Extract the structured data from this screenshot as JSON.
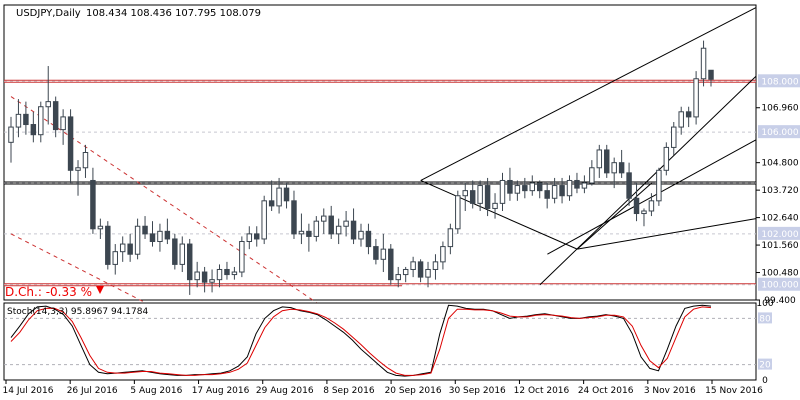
{
  "chart_data": {
    "type": "candlestick",
    "title": "USDJPY,Daily",
    "ohlc_header": "108.434 108.436 107.795 108.079",
    "daily_change": "D.Ch.: -0.33 %",
    "ylim": [
      99.4,
      111.0
    ],
    "price_ticks": [
      "108.000",
      "106.960",
      "106.000",
      "104.800",
      "103.720",
      "102.640",
      "102.000",
      "101.560",
      "100.480",
      "100.000",
      "99.400"
    ],
    "highlighted_ticks": [
      "108.000",
      "106.000",
      "104.000",
      "102.000",
      "100.000"
    ],
    "x_labels": [
      "14 Jul 2016",
      "26 Jul 2016",
      "5 Aug 2016",
      "17 Aug 2016",
      "29 Aug 2016",
      "8 Sep 2016",
      "20 Sep 2016",
      "30 Sep 2016",
      "12 Oct 2016",
      "24 Oct 2016",
      "3 Nov 2016",
      "15 Nov 2016"
    ],
    "horizontal_levels": [
      {
        "value": 108.0,
        "color": "#cc3333"
      },
      {
        "value": 104.0,
        "color": "#000000"
      },
      {
        "value": 100.0,
        "color": "#cc3333"
      }
    ],
    "dotted_levels": [
      108.0,
      106.0,
      104.0,
      102.0,
      100.0
    ],
    "candles": [
      [
        105.6,
        106.6,
        104.8,
        106.2
      ],
      [
        106.2,
        107.3,
        105.8,
        106.7
      ],
      [
        106.7,
        107.2,
        105.9,
        106.3
      ],
      [
        106.3,
        106.8,
        105.6,
        105.9
      ],
      [
        105.9,
        107.2,
        105.6,
        107.0
      ],
      [
        107.0,
        108.6,
        106.3,
        107.2
      ],
      [
        107.2,
        107.4,
        105.8,
        106.1
      ],
      [
        106.1,
        106.9,
        105.5,
        106.6
      ],
      [
        106.6,
        106.9,
        104.0,
        104.5
      ],
      [
        104.5,
        104.9,
        103.5,
        104.6
      ],
      [
        104.6,
        105.5,
        104.2,
        105.2
      ],
      [
        104.1,
        104.6,
        102.0,
        102.2
      ],
      [
        102.2,
        102.6,
        101.8,
        102.3
      ],
      [
        102.3,
        102.5,
        100.6,
        100.8
      ],
      [
        100.8,
        101.6,
        100.4,
        101.3
      ],
      [
        101.3,
        101.9,
        100.9,
        101.6
      ],
      [
        101.6,
        102.0,
        100.9,
        101.2
      ],
      [
        101.2,
        102.6,
        101.0,
        102.3
      ],
      [
        102.3,
        102.7,
        101.8,
        102.0
      ],
      [
        102.0,
        102.5,
        101.5,
        101.7
      ],
      [
        101.7,
        102.4,
        101.3,
        102.1
      ],
      [
        102.1,
        102.6,
        101.6,
        101.8
      ],
      [
        101.8,
        102.0,
        100.6,
        100.8
      ],
      [
        100.8,
        101.9,
        100.5,
        101.6
      ],
      [
        101.6,
        101.8,
        99.6,
        100.2
      ],
      [
        100.2,
        100.9,
        99.9,
        100.5
      ],
      [
        100.5,
        100.7,
        99.7,
        100.1
      ],
      [
        100.1,
        100.6,
        99.7,
        100.2
      ],
      [
        100.2,
        100.8,
        99.9,
        100.6
      ],
      [
        100.6,
        100.9,
        100.2,
        100.4
      ],
      [
        100.4,
        100.7,
        100.2,
        100.5
      ],
      [
        100.5,
        101.9,
        100.3,
        101.7
      ],
      [
        101.7,
        102.3,
        101.4,
        102.0
      ],
      [
        102.0,
        102.3,
        101.5,
        101.8
      ],
      [
        101.8,
        103.5,
        101.6,
        103.3
      ],
      [
        103.3,
        104.1,
        102.9,
        103.1
      ],
      [
        103.1,
        104.2,
        102.8,
        103.8
      ],
      [
        103.8,
        104.0,
        103.0,
        103.3
      ],
      [
        103.3,
        103.7,
        101.8,
        102.0
      ],
      [
        102.0,
        102.8,
        101.6,
        102.1
      ],
      [
        102.1,
        102.4,
        101.3,
        101.9
      ],
      [
        101.9,
        102.7,
        101.7,
        102.5
      ],
      [
        102.5,
        103.0,
        102.0,
        102.7
      ],
      [
        102.7,
        103.1,
        101.8,
        102.0
      ],
      [
        102.0,
        102.6,
        101.6,
        102.3
      ],
      [
        102.3,
        102.9,
        101.9,
        102.5
      ],
      [
        102.5,
        103.0,
        101.6,
        101.8
      ],
      [
        101.8,
        102.4,
        101.5,
        102.1
      ],
      [
        102.1,
        102.4,
        101.2,
        101.5
      ],
      [
        101.5,
        101.8,
        100.8,
        101.0
      ],
      [
        101.0,
        102.0,
        100.5,
        101.4
      ],
      [
        101.4,
        101.6,
        100.0,
        100.2
      ],
      [
        100.2,
        100.7,
        99.9,
        100.4
      ],
      [
        100.4,
        100.7,
        100.1,
        100.6
      ],
      [
        100.6,
        101.1,
        100.3,
        100.9
      ],
      [
        100.9,
        101.0,
        100.1,
        100.3
      ],
      [
        100.3,
        100.9,
        99.9,
        100.6
      ],
      [
        100.6,
        101.2,
        100.2,
        100.9
      ],
      [
        100.9,
        101.7,
        100.6,
        101.5
      ],
      [
        101.5,
        102.4,
        101.2,
        102.2
      ],
      [
        102.2,
        103.7,
        102.0,
        103.5
      ],
      [
        103.5,
        104.0,
        102.9,
        103.7
      ],
      [
        103.7,
        104.1,
        103.0,
        103.2
      ],
      [
        103.2,
        104.1,
        102.9,
        103.9
      ],
      [
        103.9,
        104.2,
        102.7,
        103.0
      ],
      [
        103.0,
        103.6,
        102.6,
        103.2
      ],
      [
        103.2,
        104.4,
        102.9,
        104.1
      ],
      [
        104.1,
        104.6,
        103.3,
        103.6
      ],
      [
        103.6,
        104.1,
        103.3,
        103.9
      ],
      [
        103.9,
        104.2,
        103.4,
        103.7
      ],
      [
        103.7,
        104.3,
        103.5,
        104.0
      ],
      [
        104.0,
        104.1,
        103.4,
        103.7
      ],
      [
        103.7,
        104.0,
        103.0,
        103.4
      ],
      [
        103.4,
        104.2,
        103.2,
        103.9
      ],
      [
        103.9,
        104.2,
        103.2,
        103.5
      ],
      [
        103.5,
        104.3,
        103.3,
        104.1
      ],
      [
        104.1,
        104.4,
        103.6,
        103.8
      ],
      [
        103.8,
        104.3,
        103.6,
        104.0
      ],
      [
        104.0,
        104.9,
        103.9,
        104.6
      ],
      [
        104.6,
        105.5,
        104.2,
        105.3
      ],
      [
        105.3,
        105.5,
        104.2,
        104.4
      ],
      [
        104.4,
        105.0,
        103.8,
        104.8
      ],
      [
        104.8,
        105.3,
        104.2,
        104.4
      ],
      [
        104.4,
        104.8,
        103.1,
        103.4
      ],
      [
        103.4,
        104.0,
        102.5,
        102.8
      ],
      [
        102.8,
        103.0,
        102.3,
        102.9
      ],
      [
        102.9,
        103.6,
        102.7,
        103.3
      ],
      [
        103.3,
        104.6,
        103.1,
        104.5
      ],
      [
        104.5,
        105.6,
        104.3,
        105.4
      ],
      [
        105.4,
        106.4,
        105.1,
        106.2
      ],
      [
        106.2,
        107.0,
        105.9,
        106.8
      ],
      [
        106.8,
        107.0,
        106.2,
        106.6
      ],
      [
        106.6,
        108.4,
        106.3,
        108.1
      ],
      [
        108.1,
        109.6,
        107.8,
        109.3
      ],
      [
        108.434,
        108.436,
        107.795,
        108.079
      ]
    ],
    "channels": [
      {
        "x1": 71,
        "y1": 100.0,
        "x2": 100,
        "y2": 108.2,
        "color": "#000000"
      },
      {
        "x1": 55,
        "y1": 104.1,
        "x2": 100,
        "y2": 110.9,
        "color": "#000000"
      },
      {
        "x1": 72,
        "y1": 101.2,
        "x2": 100,
        "y2": 105.7,
        "color": "#000000"
      },
      {
        "x1": 55,
        "y1": 104.1,
        "x2": 76,
        "y2": 101.4,
        "color": "#000000"
      },
      {
        "x1": 76,
        "y1": 101.4,
        "x2": 86,
        "y2": 104.0,
        "color": "#000000"
      },
      {
        "x1": 76,
        "y1": 101.4,
        "x2": 100,
        "y2": 102.6,
        "color": "#000000"
      },
      {
        "x1": 0,
        "y1": 107.4,
        "x2": 41,
        "y2": 99.3,
        "color": "#cc3333",
        "dash": true
      },
      {
        "x1": 0,
        "y1": 102.0,
        "x2": 18,
        "y2": 99.3,
        "color": "#cc3333",
        "dash": true
      }
    ],
    "stoch": {
      "label": "Stoch(14,3,3) 95.8967 94.1784",
      "levels": [
        80,
        20
      ],
      "tick_labels": [
        "100",
        "80",
        "20",
        "0"
      ],
      "main": [
        55,
        70,
        86,
        95,
        96,
        92,
        85,
        70,
        45,
        20,
        10,
        8,
        9,
        10,
        11,
        12,
        10,
        8,
        7,
        6,
        6,
        7,
        7,
        8,
        9,
        12,
        18,
        30,
        60,
        80,
        90,
        95,
        94,
        90,
        88,
        85,
        78,
        70,
        62,
        52,
        40,
        30,
        20,
        10,
        6,
        5,
        6,
        8,
        10,
        60,
        97,
        96,
        93,
        92,
        92,
        90,
        85,
        80,
        82,
        83,
        85,
        86,
        84,
        82,
        80,
        80,
        82,
        83,
        85,
        83,
        80,
        60,
        30,
        15,
        12,
        40,
        70,
        93,
        96,
        97,
        96
      ],
      "signal": [
        50,
        62,
        78,
        90,
        93,
        93,
        88,
        76,
        55,
        32,
        15,
        10,
        9,
        9,
        10,
        11,
        11,
        9,
        8,
        7,
        6,
        6,
        7,
        7,
        8,
        10,
        14,
        22,
        45,
        68,
        82,
        90,
        92,
        91,
        89,
        86,
        81,
        74,
        66,
        56,
        46,
        35,
        25,
        16,
        9,
        6,
        6,
        7,
        9,
        40,
        80,
        92,
        92,
        91,
        91,
        90,
        87,
        83,
        82,
        82,
        84,
        85,
        84,
        83,
        81,
        80,
        81,
        82,
        84,
        84,
        82,
        70,
        45,
        25,
        16,
        28,
        55,
        82,
        92,
        95,
        94
      ]
    },
    "colors": {
      "bull": "#ffffff",
      "bear": "#3c4650",
      "wick": "#3c4650",
      "stoch_main": "#000000",
      "stoch_signal": "#dd0000",
      "change_text": "#ee0000"
    }
  }
}
